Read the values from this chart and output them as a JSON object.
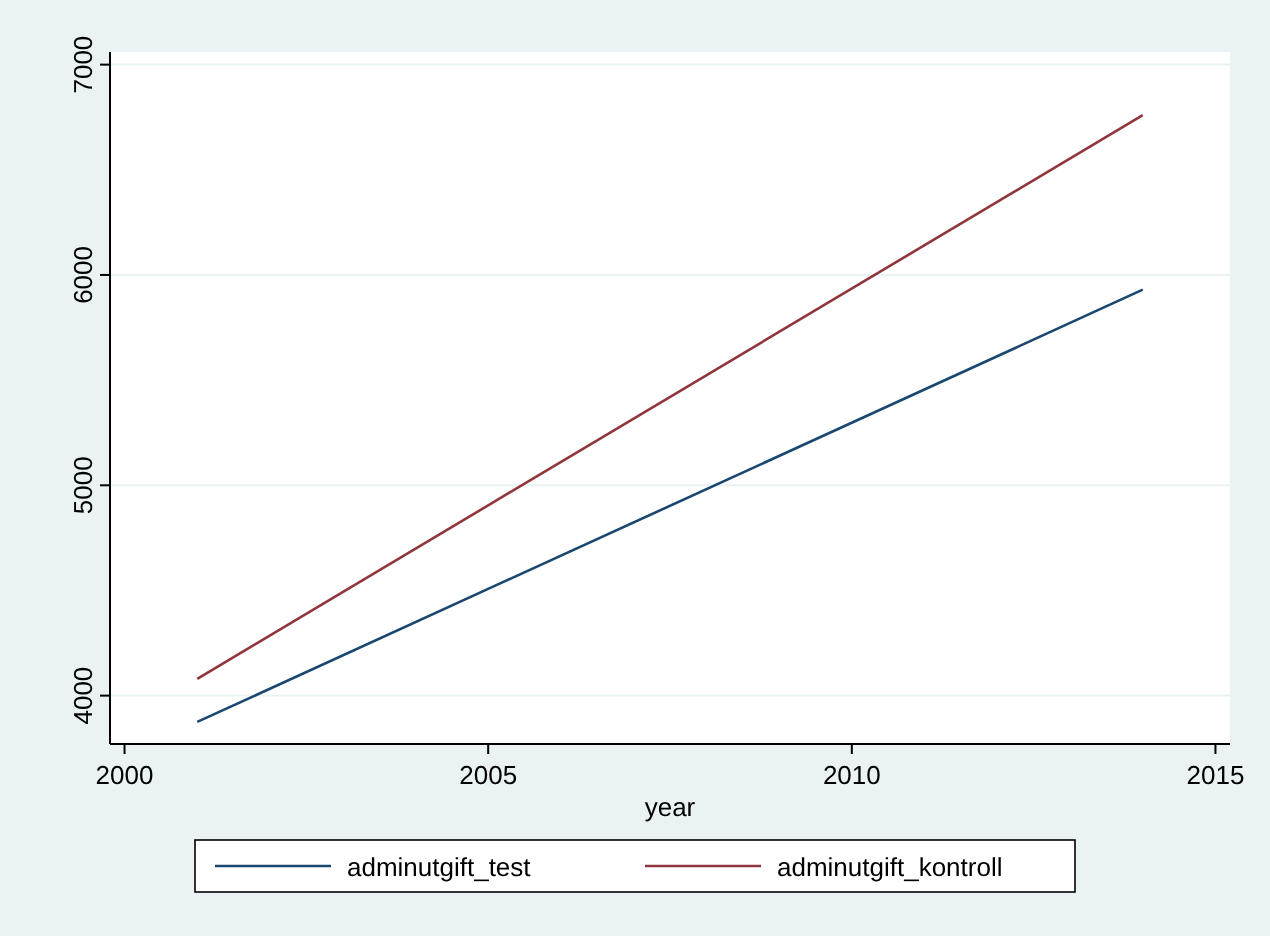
{
  "chart_data": {
    "type": "line",
    "xlabel": "year",
    "x": [
      2001,
      2014
    ],
    "series": [
      {
        "name": "adminutgift_test",
        "color": "#1a476f",
        "values": [
          3875,
          5930
        ]
      },
      {
        "name": "adminutgift_kontroll",
        "color": "#90353b",
        "values": [
          4080,
          6760
        ]
      }
    ],
    "xlim": [
      1999.8,
      2015.2
    ],
    "xticks": [
      2000,
      2005,
      2010,
      2015
    ],
    "ylim": [
      3770,
      7060
    ],
    "yticks": [
      4000,
      5000,
      6000,
      7000
    ],
    "grid": "y",
    "legend": "bottom",
    "line_style": "solid"
  }
}
